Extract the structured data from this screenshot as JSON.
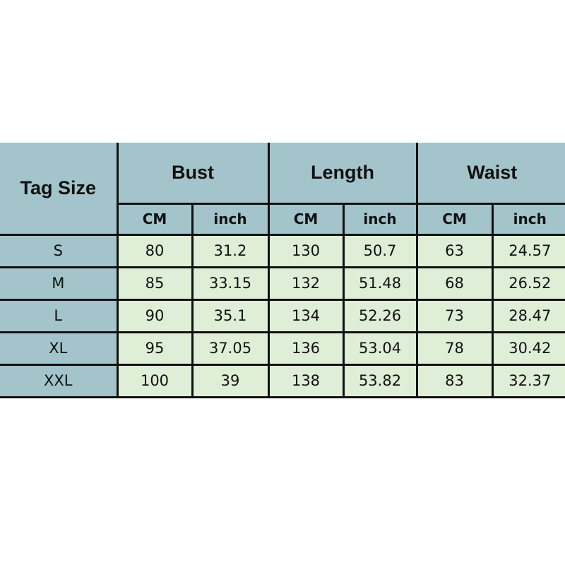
{
  "table": {
    "corner_label": "Tag Size",
    "groups": [
      "Bust",
      "Length",
      "Waist"
    ],
    "units": [
      "CM",
      "inch",
      "CM",
      "inch",
      "CM",
      "inch"
    ],
    "rows": [
      {
        "size": "S",
        "values": [
          "80",
          "31.2",
          "130",
          "50.7",
          "63",
          "24.57"
        ]
      },
      {
        "size": "M",
        "values": [
          "85",
          "33.15",
          "132",
          "51.48",
          "68",
          "26.52"
        ]
      },
      {
        "size": "L",
        "values": [
          "90",
          "35.1",
          "134",
          "52.26",
          "73",
          "28.47"
        ]
      },
      {
        "size": "XL",
        "values": [
          "95",
          "37.05",
          "136",
          "53.04",
          "78",
          "30.42"
        ]
      },
      {
        "size": "XXL",
        "values": [
          "100",
          "39",
          "138",
          "53.82",
          "83",
          "32.37"
        ]
      }
    ],
    "colors": {
      "header": "#a3c4cb",
      "data": "#dfeed7",
      "border": "#111111"
    }
  }
}
